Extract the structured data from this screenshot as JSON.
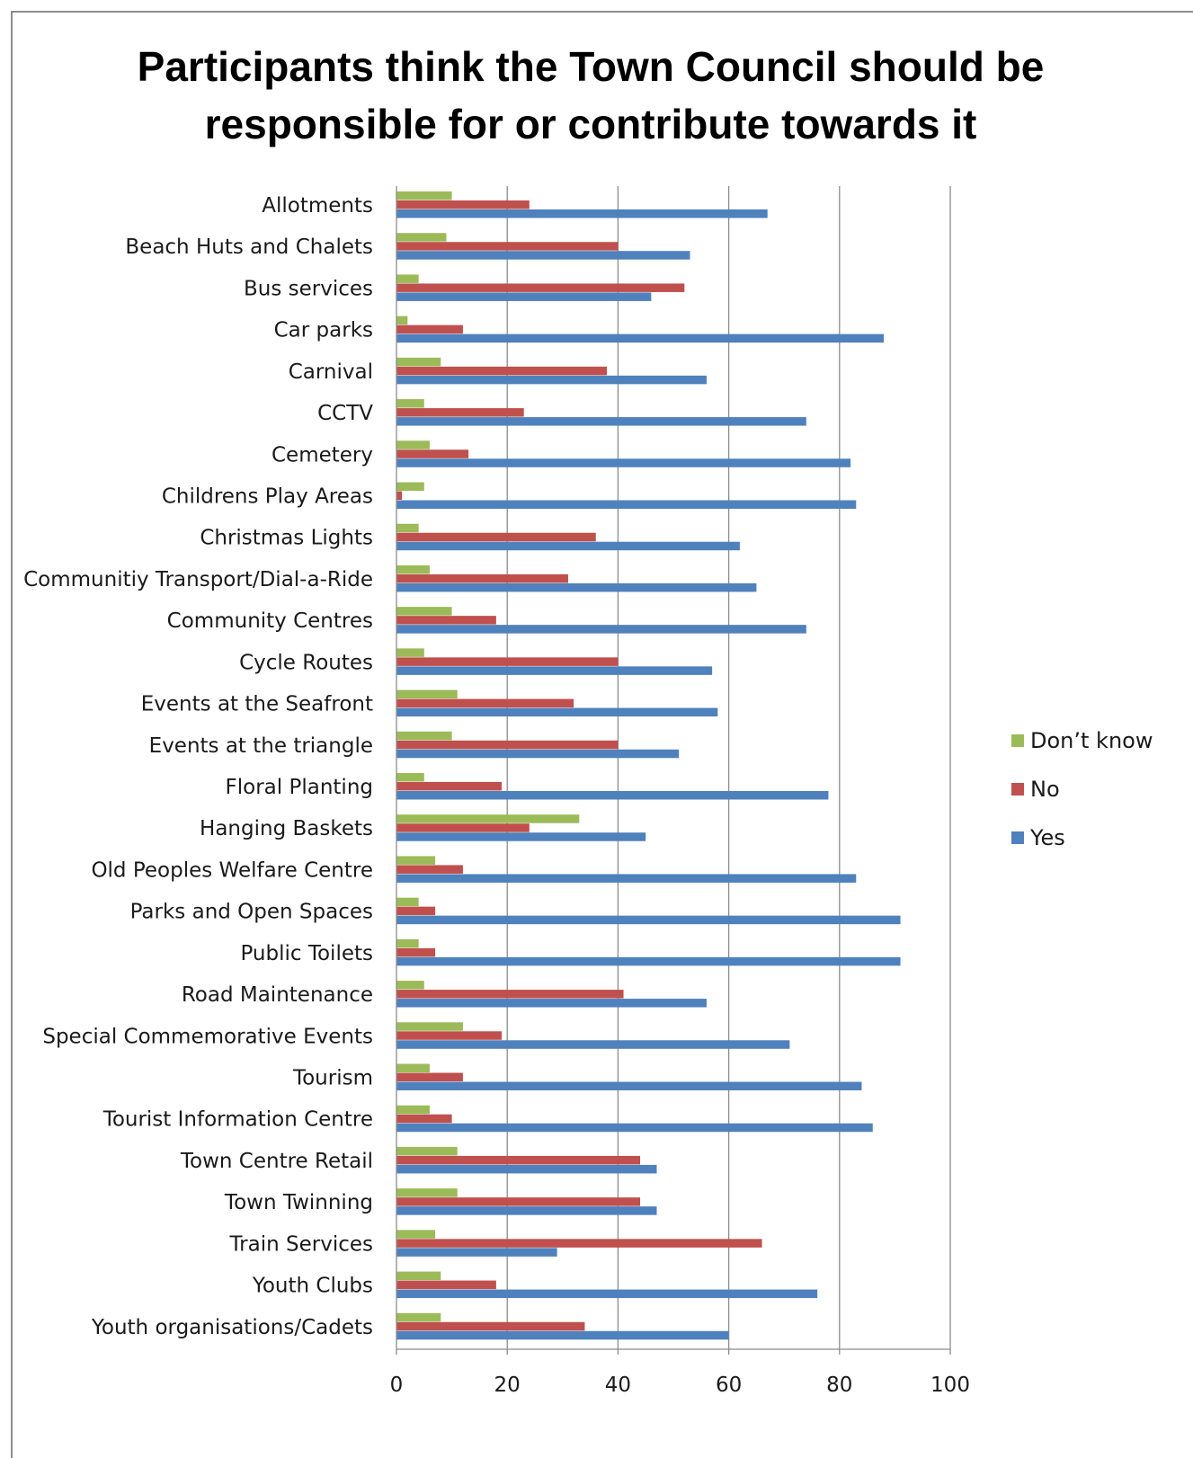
{
  "chart_data": {
    "type": "bar",
    "orientation": "horizontal",
    "title": "Participants think the Town Council should be responsible for or contribute towards it",
    "title_lines": [
      "Participants think the Town Council should be",
      "responsible for or contribute towards it"
    ],
    "categories": [
      "Allotments",
      "Beach Huts and Chalets",
      "Bus services",
      "Car parks",
      "Carnival",
      "CCTV",
      "Cemetery",
      "Childrens Play Areas",
      "Christmas Lights",
      "Communitiy Transport/Dial-a-Ride",
      "Community Centres",
      "Cycle Routes",
      "Events at the Seafront",
      "Events at the triangle",
      "Floral Planting",
      "Hanging Baskets",
      "Old Peoples Welfare Centre",
      "Parks and Open Spaces",
      "Public Toilets",
      "Road Maintenance",
      "Special Commemorative Events",
      "Tourism",
      "Tourist Information Centre",
      "Town Centre Retail",
      "Town Twinning",
      "Train Services",
      "Youth Clubs",
      "Youth organisations/Cadets"
    ],
    "series": [
      {
        "name": "Don’t know",
        "color": "#9bbb59",
        "values": [
          10,
          9,
          4,
          2,
          8,
          5,
          6,
          5,
          4,
          6,
          10,
          5,
          11,
          10,
          5,
          33,
          7,
          4,
          4,
          5,
          12,
          6,
          6,
          11,
          11,
          7,
          8,
          8
        ]
      },
      {
        "name": "No",
        "color": "#c0504d",
        "values": [
          24,
          40,
          52,
          12,
          38,
          23,
          13,
          1,
          36,
          31,
          18,
          40,
          32,
          40,
          19,
          24,
          12,
          7,
          7,
          41,
          19,
          12,
          10,
          44,
          44,
          66,
          18,
          34
        ]
      },
      {
        "name": "Yes",
        "color": "#4f81bd",
        "values": [
          67,
          53,
          46,
          88,
          56,
          74,
          82,
          83,
          62,
          65,
          74,
          57,
          58,
          51,
          78,
          45,
          83,
          91,
          91,
          56,
          71,
          84,
          86,
          47,
          47,
          29,
          76,
          60
        ]
      }
    ],
    "xlim": [
      0,
      100
    ],
    "xticks": [
      0,
      20,
      40,
      60,
      80,
      100
    ],
    "xlabel": "",
    "ylabel": "",
    "grid": "vertical",
    "legend_position": "right"
  }
}
